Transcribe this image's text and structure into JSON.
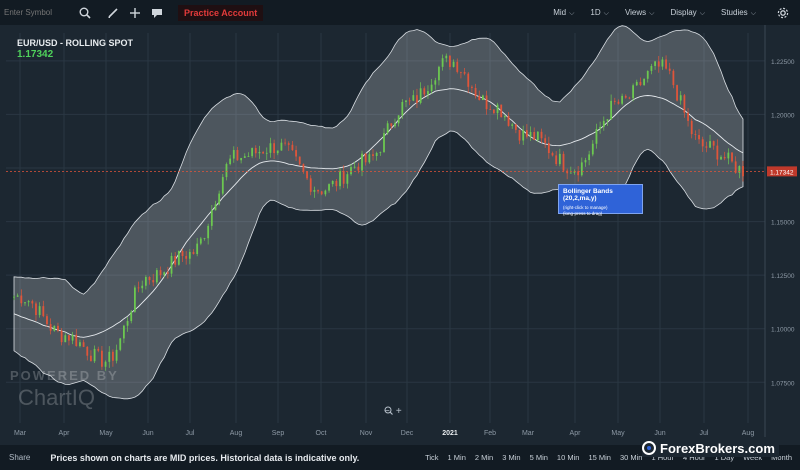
{
  "toolbar": {
    "symbol_placeholder": "Enter Symbol",
    "practice_label": "Practice Account",
    "menus": [
      "Mid",
      "1D",
      "Views",
      "Display",
      "Studies"
    ]
  },
  "chart": {
    "title": "EUR/USD - ROLLING SPOT",
    "price": "1.17342",
    "current_price_label": "1.17342",
    "tooltip_title": "Bollinger Bands (20,2,ma,y)",
    "tooltip_line1": "(right-click to manage)",
    "tooltip_line2": "(long-press to drag)",
    "watermark_top": "POWERED BY",
    "watermark_bottom": "ChartIQ",
    "zoom_out": "−",
    "zoom_in": "+",
    "colors": {
      "background": "#1c2731",
      "up_candle": "#6cc850",
      "down_candle": "#e0553a",
      "band_fill": "#ffffff",
      "price_line": "#e0553a",
      "accent": "#2f63d8"
    }
  },
  "chart_data": {
    "type": "candlestick",
    "title": "EUR/USD - ROLLING SPOT",
    "y_ticks": [
      "1.22500",
      "1.20000",
      "1.17500",
      "1.15000",
      "1.12500",
      "1.10000",
      "1.07500"
    ],
    "y_tick_values": [
      1.225,
      1.2,
      1.175,
      1.15,
      1.125,
      1.1,
      1.075
    ],
    "x_ticks": [
      "Mar",
      "Apr",
      "May",
      "Jun",
      "Jul",
      "Aug",
      "Sep",
      "Oct",
      "Nov",
      "Dec",
      "2021",
      "Feb",
      "Mar",
      "Apr",
      "May",
      "Jun",
      "Jul",
      "Aug"
    ],
    "ylim": [
      1.056,
      1.238
    ],
    "current_price": 1.17342,
    "overlay": "Bollinger Bands (20,2,ma,y)",
    "approx_close_path": [
      {
        "x": "Mar",
        "y": 1.115
      },
      {
        "x": "Apr",
        "y": 1.097
      },
      {
        "x": "May",
        "y": 1.085
      },
      {
        "x": "Jun",
        "y": 1.124
      },
      {
        "x": "Jul",
        "y": 1.135
      },
      {
        "x": "Aug",
        "y": 1.18
      },
      {
        "x": "Sep",
        "y": 1.185
      },
      {
        "x": "Oct",
        "y": 1.165
      },
      {
        "x": "Nov",
        "y": 1.178
      },
      {
        "x": "Dec",
        "y": 1.205
      },
      {
        "x": "2021",
        "y": 1.225
      },
      {
        "x": "Feb",
        "y": 1.205
      },
      {
        "x": "Mar",
        "y": 1.19
      },
      {
        "x": "Apr",
        "y": 1.175
      },
      {
        "x": "May",
        "y": 1.205
      },
      {
        "x": "Jun",
        "y": 1.222
      },
      {
        "x": "Jul",
        "y": 1.185
      },
      {
        "x": "Aug",
        "y": 1.174
      }
    ]
  },
  "bottom": {
    "share": "Share",
    "disclaimer": "Prices shown on charts are MID prices. Historical data is indicative only.",
    "periods": [
      "Tick",
      "1 Min",
      "2 Min",
      "3 Min",
      "5 Min",
      "10 Min",
      "15 Min",
      "30 Min",
      "1 Hour",
      "4 Hour",
      "1 Day",
      "Week",
      "Month"
    ],
    "brand": "ForexBrokers.com"
  }
}
